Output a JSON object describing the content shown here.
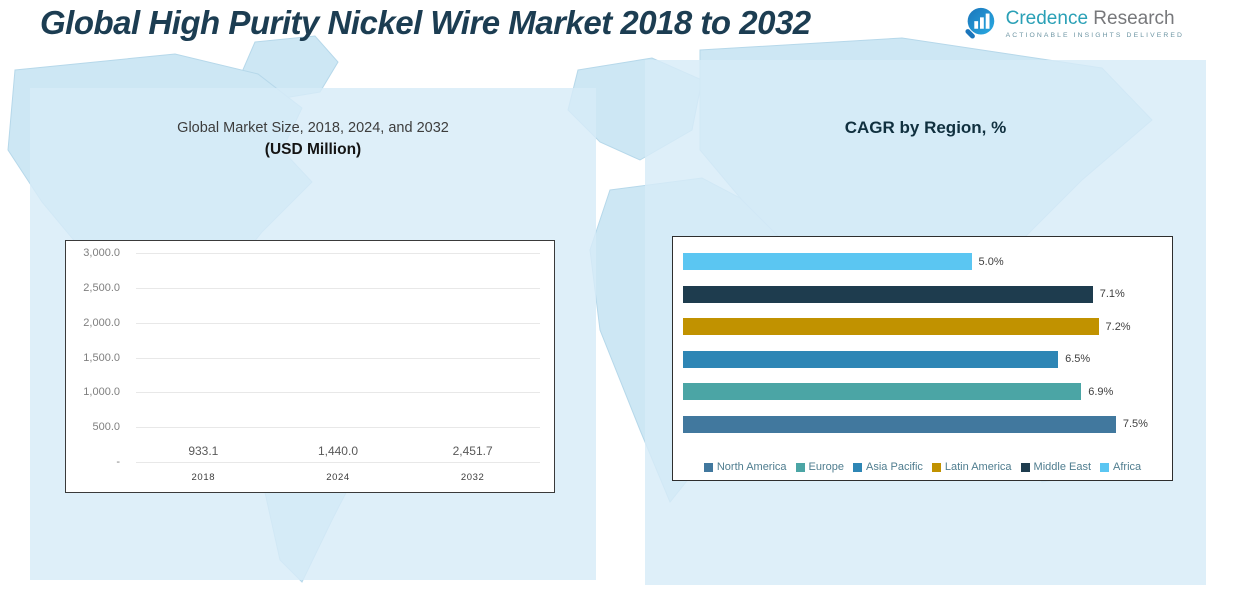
{
  "header": {
    "title": "Global High Purity Nickel Wire Market 2018 to 2032",
    "logo": {
      "brand_primary": "Credence",
      "brand_secondary": "Research",
      "tagline": "Actionable Insights Delivered"
    }
  },
  "panels": {
    "market": {
      "subtitle_line1": "Global Market Size, 2018, 2024, and 2032",
      "subtitle_line2": "(USD Million)"
    },
    "cagr": {
      "title": "CAGR by Region, %"
    }
  },
  "chart_data": [
    {
      "type": "bar",
      "title": "Global Market Size, 2018, 2024, and 2032 (USD Million)",
      "categories": [
        "2018",
        "2024",
        "2032"
      ],
      "values": [
        933.1,
        1440.0,
        2451.7
      ],
      "value_labels": [
        "933.1",
        "1,440.0",
        "2,451.7"
      ],
      "bar_colors": [
        "#BF9000",
        "#4BA5A5",
        "#2E86B5"
      ],
      "xlabel": "",
      "ylabel": "USD Million",
      "ylim": [
        0,
        3000
      ],
      "yticks": [
        "3,000.0",
        "2,500.0",
        "2,000.0",
        "1,500.0",
        "1,000.0",
        "500.0",
        "-"
      ],
      "grid": true,
      "legend_position": "none"
    },
    {
      "type": "bar",
      "orientation": "horizontal",
      "title": "CAGR by Region, %",
      "categories": [
        "Africa",
        "Middle East",
        "Latin America",
        "Asia Pacific",
        "Europe",
        "North America"
      ],
      "values": [
        5.0,
        7.1,
        7.2,
        6.5,
        6.9,
        7.5
      ],
      "value_labels": [
        "5.0%",
        "7.1%",
        "7.2%",
        "6.5%",
        "6.9%",
        "7.5%"
      ],
      "bar_colors": [
        "#5BC6F2",
        "#1E3C4E",
        "#C19200",
        "#2E86B5",
        "#4BA5A5",
        "#41789E"
      ],
      "xlim": [
        0,
        8.3
      ],
      "grid": false,
      "legend": [
        "North America",
        "Europe",
        "Asia Pacific",
        "Latin America",
        "Middle East",
        "Africa"
      ],
      "legend_colors": [
        "#41789E",
        "#4BA5A5",
        "#2E86B5",
        "#C19200",
        "#1E3C4E",
        "#5BC6F2"
      ],
      "legend_position": "bottom"
    }
  ],
  "colors": {
    "title_text": "#1C3D52",
    "panel_background": "#D7ECF8",
    "map_fill": "#CDE7F4",
    "brand_teal": "#2AA0B6",
    "brand_gray": "#77787B"
  }
}
